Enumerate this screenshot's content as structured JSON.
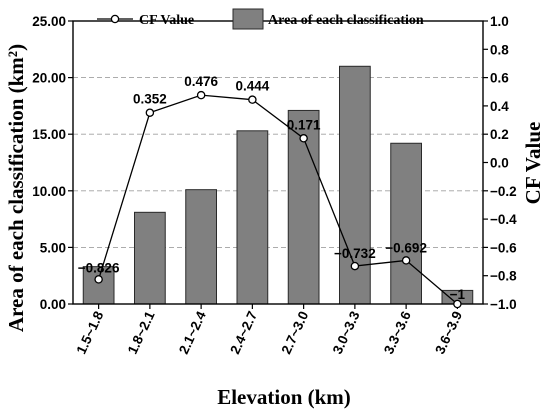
{
  "chart_data": {
    "type": "bar+line",
    "categories": [
      "1.5~1.8",
      "1.8~2.1",
      "2.1~2.4",
      "2.4~2.7",
      "2.7~3.0",
      "3.0~3.3",
      "3.3~3.6",
      "3.6~3.9"
    ],
    "series": [
      {
        "name": "Area of each classification",
        "type": "bar",
        "axis": "left",
        "values": [
          3.3,
          8.1,
          10.1,
          15.3,
          17.1,
          21.0,
          14.2,
          1.2
        ]
      },
      {
        "name": "CF Value",
        "type": "line",
        "axis": "right",
        "values": [
          -0.826,
          0.352,
          0.476,
          0.444,
          0.171,
          -0.732,
          -0.692,
          -1
        ],
        "labels": [
          "−0.826",
          "0.352",
          "0.476",
          "0.444",
          "0.171",
          "−0.732",
          "−0.692",
          "−1"
        ]
      }
    ],
    "xlabel": "Elevation (km)",
    "ylabel_left": "Area of each classification (km²)",
    "ylabel_right": "CF Value",
    "ylim_left": [
      0,
      25
    ],
    "ylim_right": [
      -1.0,
      1.0
    ],
    "yticks_left": [
      "0.00",
      "5.00",
      "10.00",
      "15.00",
      "20.00",
      "25.00"
    ],
    "yticks_right": [
      "−1.0",
      "−0.8",
      "−0.6",
      "−0.4",
      "−0.2",
      "0.0",
      "0.2",
      "0.4",
      "0.6",
      "0.8",
      "1.0"
    ],
    "grid": "horizontal dashed",
    "legend_position": "top"
  }
}
